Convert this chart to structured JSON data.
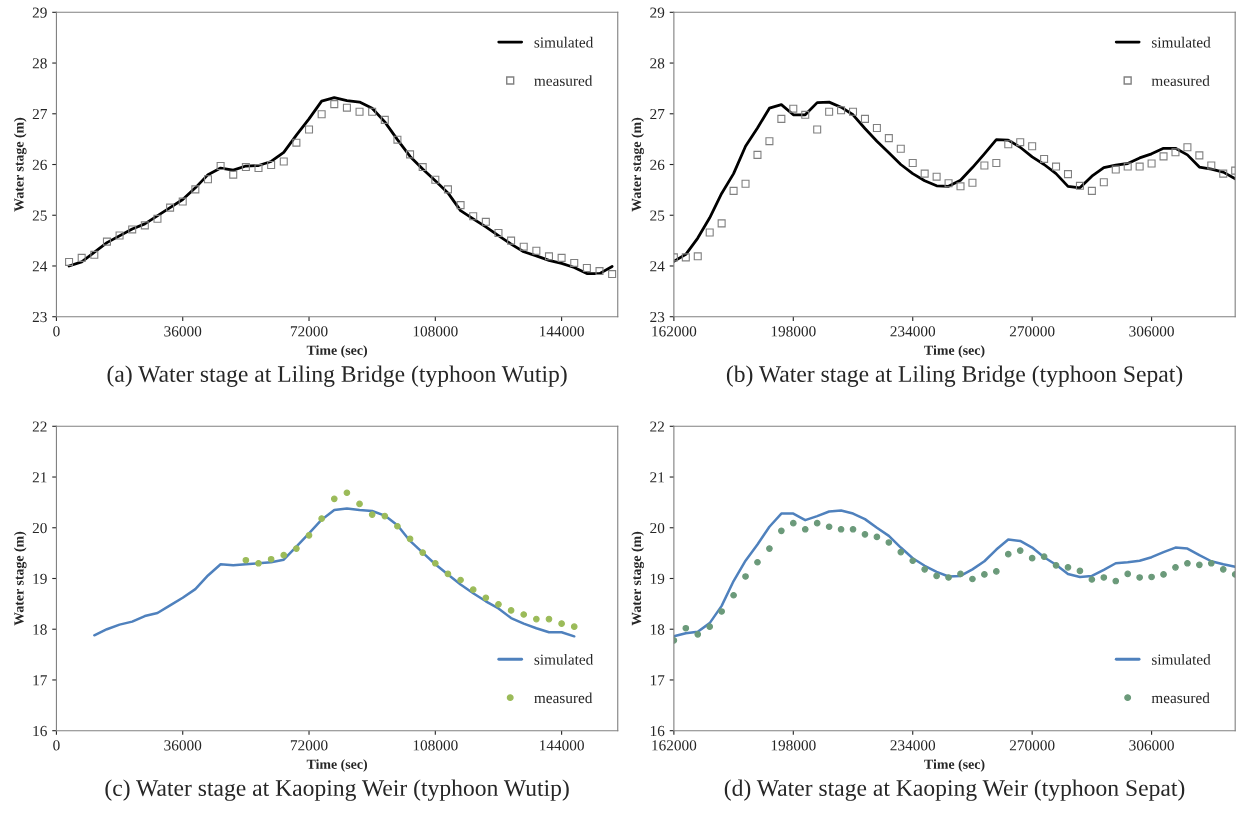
{
  "chart_data": [
    {
      "type": "line",
      "title": "(a) Water stage at Liling Bridge (typhoon Wutip)",
      "xlabel": "Time (sec)",
      "ylabel": "Water stage (m)",
      "xlim": [
        0,
        160000
      ],
      "xticks": [
        0,
        36000,
        72000,
        108000,
        144000
      ],
      "ylim": [
        23,
        29
      ],
      "yticks": [
        23,
        24,
        25,
        26,
        27,
        28,
        29
      ],
      "grid": false,
      "legend": "top right",
      "series": [
        {
          "name": "simulated",
          "color": "#000000",
          "line_style": "solid",
          "marker": "none",
          "x": [
            3600,
            7200,
            14400,
            21600,
            25200,
            32400,
            36000,
            39600,
            43200,
            46800,
            50400,
            54000,
            57600,
            61200,
            64800,
            68400,
            72000,
            75600,
            79200,
            82800,
            86400,
            90000,
            93600,
            97200,
            100800,
            104400,
            108000,
            111600,
            115200,
            118800,
            122400,
            126000,
            129600,
            133200,
            136800,
            140400,
            144000,
            147600,
            151200,
            154800,
            158400
          ],
          "values": [
            24.0,
            24.08,
            24.46,
            24.73,
            24.83,
            25.15,
            25.31,
            25.54,
            25.8,
            25.93,
            25.89,
            25.97,
            25.98,
            26.06,
            26.24,
            26.58,
            26.9,
            27.25,
            27.32,
            27.26,
            27.23,
            27.11,
            26.84,
            26.49,
            26.16,
            25.91,
            25.68,
            25.44,
            25.09,
            24.93,
            24.77,
            24.6,
            24.43,
            24.28,
            24.2,
            24.11,
            24.05,
            23.97,
            23.85,
            23.85,
            23.99
          ]
        },
        {
          "name": "measured",
          "type": "scatter",
          "color": "#808080",
          "marker": "square",
          "x": [
            3600,
            7200,
            10800,
            14400,
            18000,
            21600,
            25200,
            28800,
            32400,
            36000,
            39600,
            43200,
            46800,
            50400,
            54000,
            57600,
            61200,
            64800,
            68400,
            72000,
            75600,
            79200,
            82800,
            86400,
            90000,
            93600,
            97200,
            100800,
            104400,
            108000,
            111600,
            115200,
            118800,
            122400,
            126000,
            129600,
            133200,
            136800,
            140400,
            144000,
            147600,
            151200,
            154800,
            158400
          ],
          "values": [
            24.08,
            24.16,
            24.22,
            24.48,
            24.6,
            24.72,
            24.8,
            24.93,
            25.15,
            25.27,
            25.51,
            25.71,
            25.97,
            25.8,
            25.95,
            25.93,
            25.99,
            26.06,
            26.43,
            26.69,
            26.99,
            27.19,
            27.12,
            27.04,
            27.04,
            26.88,
            26.49,
            26.2,
            25.95,
            25.7,
            25.51,
            25.2,
            24.98,
            24.87,
            24.65,
            24.5,
            24.38,
            24.3,
            24.19,
            24.16,
            24.06,
            23.96,
            23.9,
            23.84
          ]
        }
      ]
    },
    {
      "type": "line",
      "title": "(b) Water stage at Liling Bridge (typhoon Sepat)",
      "xlabel": "Time (sec)",
      "ylabel": "Water stage (m)",
      "xlim": [
        162000,
        331200
      ],
      "xticks": [
        162000,
        198000,
        234000,
        270000,
        306000
      ],
      "ylim": [
        23,
        29
      ],
      "yticks": [
        23,
        24,
        25,
        26,
        27,
        28,
        29
      ],
      "grid": false,
      "legend": "top right",
      "x": [
        162000,
        165600,
        169200,
        172800,
        176400,
        180000,
        183600,
        187200,
        190800,
        194400,
        198000,
        201600,
        205200,
        208800,
        212400,
        216000,
        219600,
        223200,
        226800,
        230400,
        234000,
        237600,
        241200,
        244800,
        248400,
        252000,
        255600,
        259200,
        262800,
        266400,
        270000,
        273600,
        277200,
        280800,
        284400,
        288000,
        291600,
        295200,
        298800,
        302400,
        306000,
        309600,
        313200,
        316800,
        320400,
        324000,
        327600,
        331200
      ],
      "series": [
        {
          "name": "simulated",
          "color": "#000000",
          "line_style": "solid",
          "marker": "none",
          "values": [
            24.09,
            24.23,
            24.55,
            24.95,
            25.43,
            25.82,
            26.36,
            26.72,
            27.11,
            27.18,
            26.98,
            26.98,
            27.22,
            27.23,
            27.13,
            26.98,
            26.71,
            26.46,
            26.23,
            26.0,
            25.82,
            25.68,
            25.58,
            25.57,
            25.69,
            25.94,
            26.21,
            26.49,
            26.48,
            26.34,
            26.15,
            26.0,
            25.82,
            25.57,
            25.54,
            25.77,
            25.94,
            25.99,
            26.02,
            26.13,
            26.21,
            26.32,
            26.32,
            26.19,
            25.95,
            25.91,
            25.85,
            25.72
          ]
        },
        {
          "name": "measured",
          "type": "scatter",
          "color": "#808080",
          "marker": "square",
          "values": [
            24.17,
            24.17,
            24.19,
            24.66,
            24.84,
            25.48,
            25.62,
            26.19,
            26.46,
            26.9,
            27.1,
            26.98,
            26.69,
            27.04,
            27.07,
            27.04,
            26.9,
            26.72,
            26.52,
            26.31,
            26.03,
            25.82,
            25.76,
            25.63,
            25.57,
            25.64,
            25.98,
            26.03,
            26.4,
            26.44,
            26.36,
            26.11,
            25.96,
            25.81,
            25.58,
            25.48,
            25.65,
            25.9,
            25.96,
            25.96,
            26.02,
            26.16,
            26.24,
            26.34,
            26.18,
            25.98,
            25.82,
            25.88
          ]
        }
      ]
    },
    {
      "type": "line",
      "title": "(c) Water stage at Kaoping Weir (typhoon Wutip)",
      "xlabel": "Time (sec)",
      "ylabel": "Water stage (m)",
      "xlim": [
        0,
        160000
      ],
      "xticks": [
        0,
        36000,
        72000,
        108000,
        144000
      ],
      "ylim": [
        16,
        22
      ],
      "yticks": [
        16,
        17,
        18,
        19,
        20,
        21,
        22
      ],
      "grid": false,
      "legend": "bottom right",
      "series": [
        {
          "name": "simulated",
          "color": "#4f81bd",
          "line_style": "solid",
          "marker": "none",
          "x": [
            10800,
            14400,
            18000,
            21600,
            25200,
            28800,
            32400,
            36000,
            39600,
            43200,
            46800,
            50400,
            54000,
            57600,
            61200,
            64800,
            68400,
            72000,
            75600,
            79200,
            82800,
            86400,
            90000,
            93600,
            97200,
            100800,
            104400,
            108000,
            111600,
            115200,
            118800,
            122400,
            126000,
            129600,
            133200,
            136800,
            140400,
            144000,
            147600
          ],
          "values": [
            17.88,
            18.0,
            18.09,
            18.15,
            18.26,
            18.32,
            18.47,
            18.62,
            18.79,
            19.06,
            19.28,
            19.26,
            19.28,
            19.3,
            19.32,
            19.37,
            19.63,
            19.89,
            20.16,
            20.35,
            20.38,
            20.35,
            20.33,
            20.24,
            20.05,
            19.74,
            19.51,
            19.28,
            19.08,
            18.88,
            18.71,
            18.55,
            18.41,
            18.22,
            18.11,
            18.02,
            17.94,
            17.94,
            17.86
          ]
        },
        {
          "name": "measured",
          "type": "scatter",
          "color": "#9bbb59",
          "marker": "circle",
          "x": [
            54000,
            57600,
            61200,
            64800,
            68400,
            72000,
            75600,
            79200,
            82800,
            86400,
            90000,
            93600,
            97200,
            100800,
            104400,
            108000,
            111600,
            115200,
            118800,
            122400,
            126000,
            129600,
            133200,
            136800,
            140400,
            144000,
            147600
          ],
          "values": [
            19.36,
            19.3,
            19.38,
            19.46,
            19.59,
            19.85,
            20.18,
            20.57,
            20.69,
            20.47,
            20.26,
            20.23,
            20.03,
            19.78,
            19.51,
            19.3,
            19.09,
            18.97,
            18.78,
            18.62,
            18.49,
            18.37,
            18.29,
            18.2,
            18.2,
            18.11,
            18.05
          ]
        }
      ]
    },
    {
      "type": "line",
      "title": "(d) Water stage at Kaoping Weir (typhoon Sepat)",
      "xlabel": "Time (sec)",
      "ylabel": "Water stage (m)",
      "xlim": [
        162000,
        331200
      ],
      "xticks": [
        162000,
        198000,
        234000,
        270000,
        306000
      ],
      "ylim": [
        16,
        22
      ],
      "yticks": [
        16,
        17,
        18,
        19,
        20,
        21,
        22
      ],
      "grid": false,
      "legend": "bottom right",
      "x": [
        162000,
        165600,
        169200,
        172800,
        176400,
        180000,
        183600,
        187200,
        190800,
        194400,
        198000,
        201600,
        205200,
        208800,
        212400,
        216000,
        219600,
        223200,
        226800,
        230400,
        234000,
        237600,
        241200,
        244800,
        248400,
        252000,
        255600,
        259200,
        262800,
        266400,
        270000,
        273600,
        277200,
        280800,
        284400,
        288000,
        291600,
        295200,
        298800,
        302400,
        306000,
        309600,
        313200,
        316800,
        320400,
        324000,
        327600,
        331200
      ],
      "series": [
        {
          "name": "simulated",
          "color": "#4f81bd",
          "line_style": "solid",
          "marker": "none",
          "values": [
            17.86,
            17.92,
            17.95,
            18.12,
            18.46,
            18.95,
            19.35,
            19.67,
            20.02,
            20.28,
            20.28,
            20.15,
            20.23,
            20.32,
            20.34,
            20.28,
            20.17,
            20.0,
            19.84,
            19.61,
            19.4,
            19.25,
            19.13,
            19.04,
            19.05,
            19.18,
            19.34,
            19.57,
            19.77,
            19.74,
            19.61,
            19.42,
            19.27,
            19.09,
            19.03,
            19.05,
            19.17,
            19.3,
            19.32,
            19.35,
            19.42,
            19.52,
            19.61,
            19.59,
            19.46,
            19.34,
            19.28,
            19.23
          ]
        },
        {
          "name": "measured",
          "type": "scatter",
          "color": "#6b9a7a",
          "marker": "circle",
          "values": [
            17.78,
            18.02,
            17.9,
            18.05,
            18.35,
            18.67,
            19.04,
            19.32,
            19.59,
            19.94,
            20.09,
            19.97,
            20.09,
            20.02,
            19.97,
            19.97,
            19.87,
            19.82,
            19.71,
            19.52,
            19.35,
            19.18,
            19.05,
            19.02,
            19.09,
            18.99,
            19.08,
            19.14,
            19.48,
            19.55,
            19.4,
            19.43,
            19.26,
            19.22,
            19.15,
            18.98,
            19.02,
            18.95,
            19.09,
            19.02,
            19.03,
            19.08,
            19.22,
            19.3,
            19.27,
            19.3,
            19.18,
            19.08
          ]
        }
      ]
    }
  ]
}
